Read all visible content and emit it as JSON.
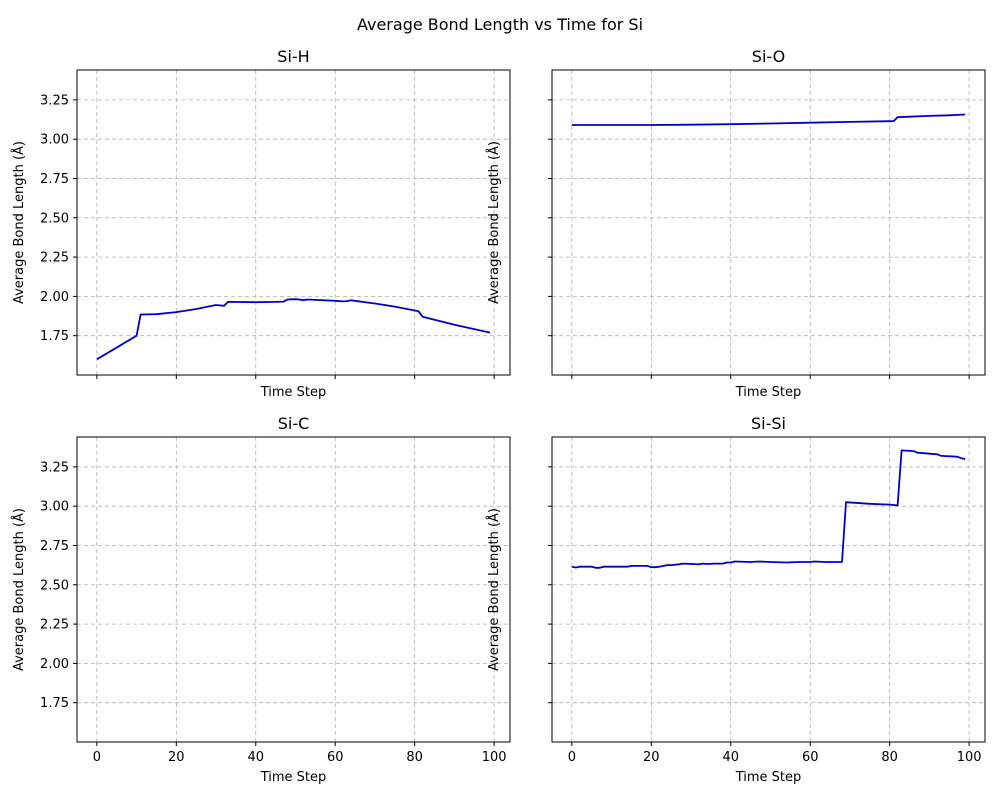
{
  "figure": {
    "suptitle": "Average Bond Length vs Time for Si"
  },
  "chart_data": [
    {
      "type": "line",
      "title": "Si-H",
      "xlabel": "Time Step",
      "ylabel": "Average Bond Length (Å)",
      "xlim": [
        -5,
        104
      ],
      "ylim": [
        1.5,
        3.44
      ],
      "xticks": [
        0,
        20,
        40,
        60,
        80,
        100
      ],
      "yticks": [
        1.75,
        2.0,
        2.25,
        2.5,
        2.75,
        3.0,
        3.25
      ],
      "show_xticklabels": false,
      "show_yticklabels": true,
      "grid": true,
      "line_color": "#0000cc",
      "x": [
        0,
        10,
        11,
        15,
        20,
        25,
        30,
        32,
        33,
        40,
        45,
        47,
        48,
        50,
        51,
        52,
        53,
        55,
        60,
        62,
        63,
        64,
        70,
        75,
        81,
        82,
        90,
        99
      ],
      "y": [
        1.6,
        1.75,
        1.885,
        1.887,
        1.9,
        1.92,
        1.945,
        1.94,
        1.965,
        1.963,
        1.965,
        1.967,
        1.98,
        1.982,
        1.98,
        1.975,
        1.98,
        1.978,
        1.972,
        1.968,
        1.97,
        1.975,
        1.955,
        1.935,
        1.905,
        1.87,
        1.82,
        1.77
      ]
    },
    {
      "type": "line",
      "title": "Si-O",
      "xlabel": "Time Step",
      "ylabel": "Average Bond Length (Å)",
      "xlim": [
        -5,
        104
      ],
      "ylim": [
        1.5,
        3.44
      ],
      "xticks": [
        0,
        20,
        40,
        60,
        80,
        100
      ],
      "yticks": [
        1.75,
        2.0,
        2.25,
        2.5,
        2.75,
        3.0,
        3.25
      ],
      "show_xticklabels": false,
      "show_yticklabels": false,
      "grid": true,
      "line_color": "#0000cc",
      "x": [
        0,
        10,
        20,
        30,
        40,
        50,
        60,
        70,
        81,
        82,
        85,
        90,
        95,
        99
      ],
      "y": [
        3.09,
        3.09,
        3.09,
        3.092,
        3.095,
        3.1,
        3.105,
        3.11,
        3.115,
        3.14,
        3.143,
        3.148,
        3.152,
        3.157
      ]
    },
    {
      "type": "line",
      "title": "Si-C",
      "xlabel": "Time Step",
      "ylabel": "Average Bond Length (Å)",
      "xlim": [
        -5,
        104
      ],
      "ylim": [
        1.5,
        3.44
      ],
      "xticks": [
        0,
        20,
        40,
        60,
        80,
        100
      ],
      "yticks": [
        1.75,
        2.0,
        2.25,
        2.5,
        2.75,
        3.0,
        3.25
      ],
      "show_xticklabels": true,
      "show_yticklabels": true,
      "grid": true,
      "line_color": "#0000cc",
      "x": [],
      "y": []
    },
    {
      "type": "line",
      "title": "Si-Si",
      "xlabel": "Time Step",
      "ylabel": "Average Bond Length (Å)",
      "xlim": [
        -5,
        104
      ],
      "ylim": [
        1.5,
        3.44
      ],
      "xticks": [
        0,
        20,
        40,
        60,
        80,
        100
      ],
      "yticks": [
        1.75,
        2.0,
        2.25,
        2.5,
        2.75,
        3.0,
        3.25
      ],
      "show_xticklabels": true,
      "show_yticklabels": false,
      "grid": true,
      "line_color": "#0000cc",
      "x": [
        0,
        1,
        2,
        5,
        6,
        7,
        8,
        12,
        14,
        15,
        19,
        20,
        21,
        22,
        24,
        25,
        27,
        28,
        32,
        33,
        34,
        36,
        38,
        39,
        40,
        41,
        45,
        47,
        50,
        54,
        57,
        60,
        61,
        64,
        68,
        69,
        75,
        80,
        82,
        83,
        86,
        87,
        92,
        93,
        97,
        98,
        99
      ],
      "y": [
        2.615,
        2.61,
        2.615,
        2.615,
        2.608,
        2.608,
        2.615,
        2.615,
        2.615,
        2.62,
        2.62,
        2.612,
        2.612,
        2.615,
        2.625,
        2.625,
        2.63,
        2.635,
        2.63,
        2.635,
        2.632,
        2.635,
        2.635,
        2.642,
        2.642,
        2.648,
        2.645,
        2.648,
        2.645,
        2.642,
        2.645,
        2.645,
        2.648,
        2.645,
        2.645,
        3.025,
        3.015,
        3.01,
        3.005,
        3.355,
        3.35,
        3.34,
        3.33,
        3.32,
        3.315,
        3.305,
        3.3
      ]
    }
  ]
}
